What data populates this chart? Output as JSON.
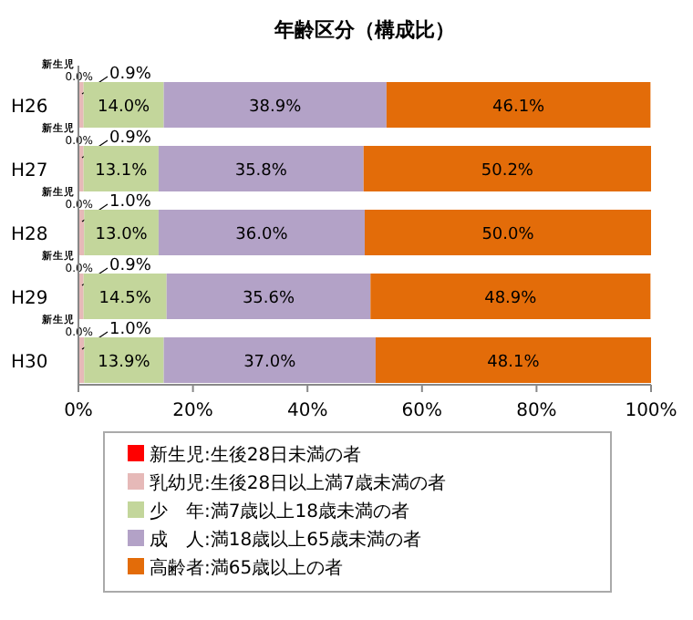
{
  "chart_data": {
    "type": "bar",
    "orientation": "horizontal",
    "stacked": true,
    "title": "年齢区分（構成比）",
    "categories": [
      "H26",
      "H27",
      "H28",
      "H29",
      "H30"
    ],
    "series": [
      {
        "name": "新生児:生後28日未満の者",
        "color": "#ff0000",
        "values": [
          0.0,
          0.0,
          0.0,
          0.0,
          0.0
        ],
        "value_labels": [
          "0.0%",
          "0.0%",
          "0.0%",
          "0.0%",
          "0.0%"
        ]
      },
      {
        "name": "乳幼児:生後28日以上満7歳未満の者",
        "color": "#e6b9b8",
        "values": [
          0.9,
          0.9,
          1.0,
          0.9,
          1.0
        ],
        "value_labels": [
          "0.9%",
          "0.9%",
          "1.0%",
          "0.9%",
          "1.0%"
        ]
      },
      {
        "name": "少　年:満7歳以上18歳未満の者",
        "color": "#c3d69b",
        "values": [
          14.0,
          13.1,
          13.0,
          14.5,
          13.9
        ],
        "value_labels": [
          "14.0%",
          "13.1%",
          "13.0%",
          "14.5%",
          "13.9%"
        ]
      },
      {
        "name": "成　人:満18歳以上65歳未満の者",
        "color": "#b3a2c7",
        "values": [
          38.9,
          35.8,
          36.0,
          35.6,
          37.0
        ],
        "value_labels": [
          "38.9%",
          "35.8%",
          "36.0%",
          "35.6%",
          "37.0%"
        ]
      },
      {
        "name": "高齢者:満65歳以上の者",
        "color": "#e36c09",
        "values": [
          46.1,
          50.2,
          50.0,
          48.9,
          48.1
        ],
        "value_labels": [
          "46.1%",
          "50.2%",
          "50.0%",
          "48.9%",
          "48.1%"
        ]
      }
    ],
    "xlim": [
      0,
      100
    ],
    "xticks": [
      {
        "value": 0,
        "label": "0%"
      },
      {
        "value": 20,
        "label": "20%"
      },
      {
        "value": 40,
        "label": "40%"
      },
      {
        "value": 60,
        "label": "60%"
      },
      {
        "value": 80,
        "label": "80%"
      },
      {
        "value": 100,
        "label": "100%"
      }
    ],
    "annotations": [
      "新生児",
      "新生児",
      "新生児",
      "新生児",
      "新生児"
    ],
    "legend": "bottom"
  }
}
